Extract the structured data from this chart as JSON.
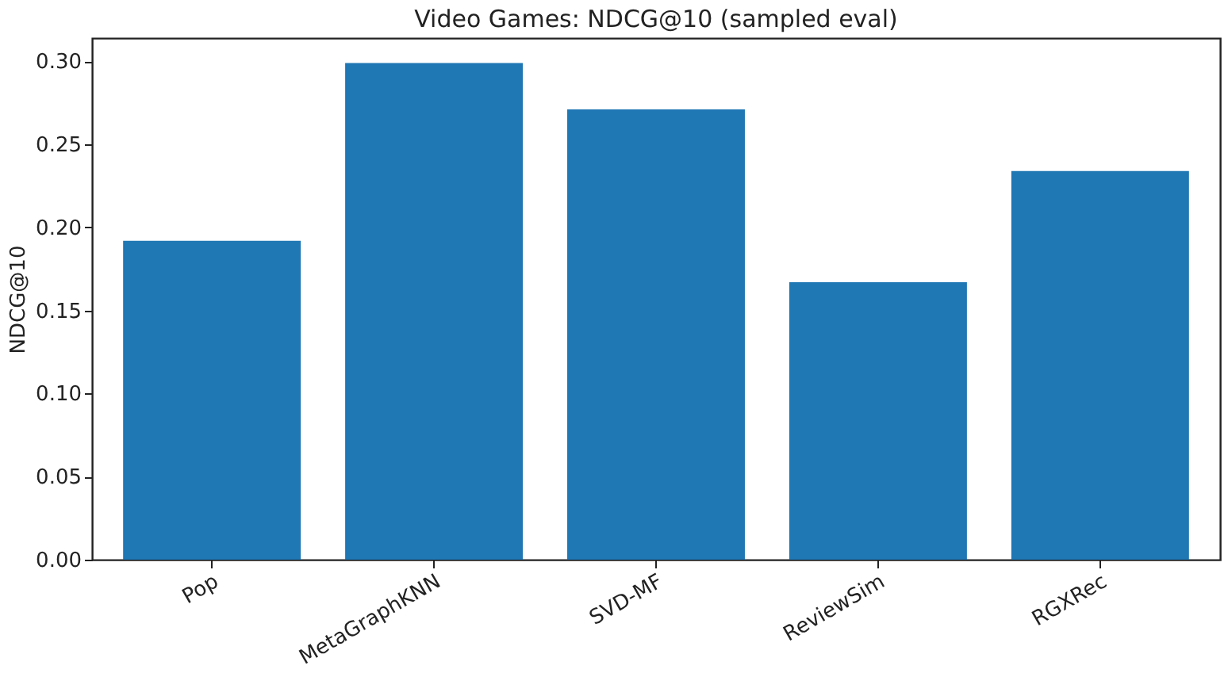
{
  "chart_data": {
    "type": "bar",
    "title": "Video Games: NDCG@10 (sampled eval)",
    "ylabel": "NDCG@10",
    "categories": [
      "Pop",
      "MetaGraphKNN",
      "SVD-MF",
      "ReviewSim",
      "RGXRec"
    ],
    "values": [
      0.192,
      0.299,
      0.271,
      0.167,
      0.234
    ],
    "color": "#1f77b4",
    "ylim": [
      0,
      0.314
    ],
    "yticks": [
      {
        "value": 0,
        "label": "0.00"
      },
      0.05,
      {
        "value": 0.1,
        "label": "0.10"
      },
      0.15,
      {
        "value": 0.2,
        "label": "0.20"
      },
      0.25,
      {
        "value": 0.3,
        "label": "0.30"
      }
    ],
    "grid": false
  }
}
